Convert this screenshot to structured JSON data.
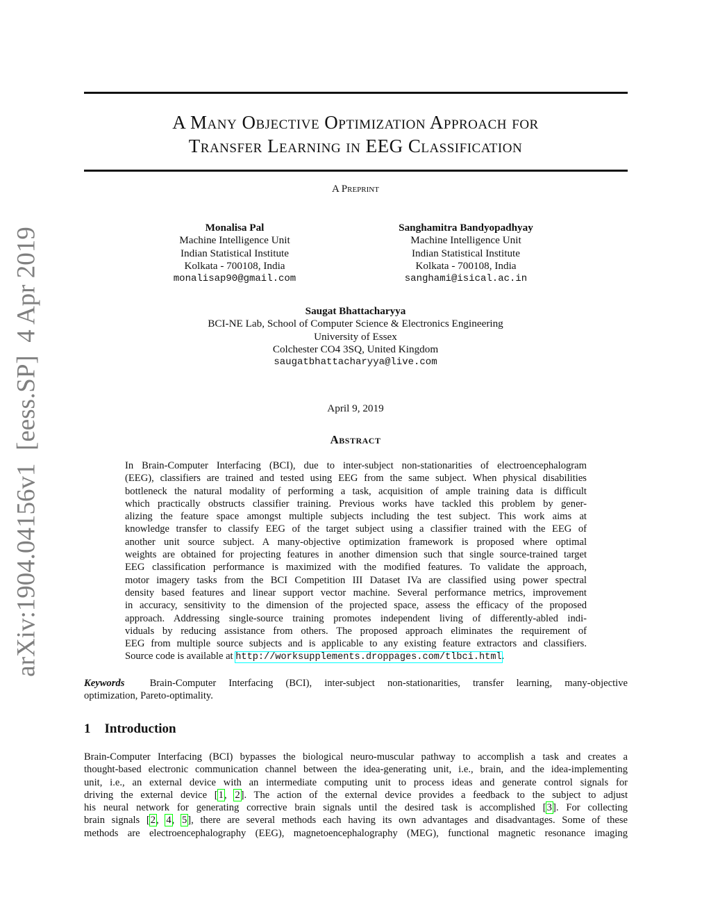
{
  "arxiv_stamp": "arXiv:1904.04156v1  [eess.SP]  4 Apr 2019",
  "title": {
    "line1": "A Many Objective Optimization Approach for",
    "line2": "Transfer Learning in EEG Classification"
  },
  "preprint_label": "A Preprint",
  "authors": [
    {
      "name": "Monalisa Pal",
      "unit": "Machine Intelligence Unit",
      "institute": "Indian Statistical Institute",
      "address": "Kolkata - 700108, India",
      "email": "monalisap90@gmail.com"
    },
    {
      "name": "Sanghamitra Bandyopadhyay",
      "unit": "Machine Intelligence Unit",
      "institute": "Indian Statistical Institute",
      "address": "Kolkata - 700108, India",
      "email": "sanghami@isical.ac.in"
    },
    {
      "name": "Saugat Bhattacharyya",
      "unit": "BCI-NE Lab, School of Computer Science & Electronics Engineering",
      "institute": "University of Essex",
      "address": "Colchester CO4 3SQ, United Kingdom",
      "email": "saugatbhattacharyya@live.com"
    }
  ],
  "date": "April 9, 2019",
  "abstract": {
    "heading": "Abstract",
    "lines": [
      "In Brain-Computer Interfacing (BCI), due to inter-subject non-stationarities of electroencephalogram",
      "(EEG), classifiers are trained and tested using EEG from the same subject. When physical disabilities",
      "bottleneck the natural modality of performing a task, acquisition of ample training data is difficult",
      "which practically obstructs classifier training. Previous works have tackled this problem by gener-",
      "alizing the feature space amongst multiple subjects including the test subject. This work aims at",
      "knowledge transfer to classify EEG of the target subject using a classifier trained with the EEG of",
      "another unit source subject. A many-objective optimization framework is proposed where optimal",
      "weights are obtained for projecting features in another dimension such that single source-trained target",
      "EEG classification performance is maximized with the modified features. To validate the approach,",
      "motor imagery tasks from the BCI Competition III Dataset IVa are classified using power spectral",
      "density based features and linear support vector machine. Several performance metrics, improvement",
      "in accuracy, sensitivity to the dimension of the projected space, assess the efficacy of the proposed",
      "approach. Addressing single-source training promotes independent living of differently-abled indi-",
      "viduals by reducing assistance from others. The proposed approach eliminates the requirement of",
      "EEG from multiple source subjects and is applicable to any existing feature extractors and classifiers."
    ],
    "last_line_prefix": "Source code is available at ",
    "link": "http://worksupplements.droppages.com/tlbci.html",
    "last_line_suffix": "."
  },
  "keywords": {
    "label": "Keywords",
    "line1": "Brain-Computer Interfacing (BCI), inter-subject non-stationarities, transfer learning, many-objective",
    "line2": "optimization, Pareto-optimality."
  },
  "section1": {
    "number": "1",
    "title": "Introduction",
    "l1": "Brain-Computer Interfacing (BCI) bypasses the biological neuro-muscular pathway to accomplish a task and creates a",
    "l2": "thought-based electronic communication channel between the idea-generating unit, i.e., brain, and the idea-implementing",
    "l3": "unit, i.e., an external device with an intermediate computing unit to process ideas and generate control signals for",
    "l4a": "driving the external device [",
    "l4b": "].  The action of the external device provides a feedback to the subject to adjust",
    "l5a": "his neural network for generating corrective brain signals until the desired task is accomplished [",
    "l5b": "].  For collecting",
    "l6a": "brain signals [",
    "l6b": "], there are several methods each having its own advantages and disadvantages.  Some of these",
    "l7": "methods are electroencephalography (EEG), magnetoencephalography (MEG), functional magnetic resonance imaging",
    "cites": [
      "1",
      "2",
      "3",
      "2",
      "4",
      "5"
    ]
  },
  "colors": {
    "citation_box": "#00ff00",
    "link_box": "#00ffff",
    "stamp": "#7f7f7f"
  }
}
